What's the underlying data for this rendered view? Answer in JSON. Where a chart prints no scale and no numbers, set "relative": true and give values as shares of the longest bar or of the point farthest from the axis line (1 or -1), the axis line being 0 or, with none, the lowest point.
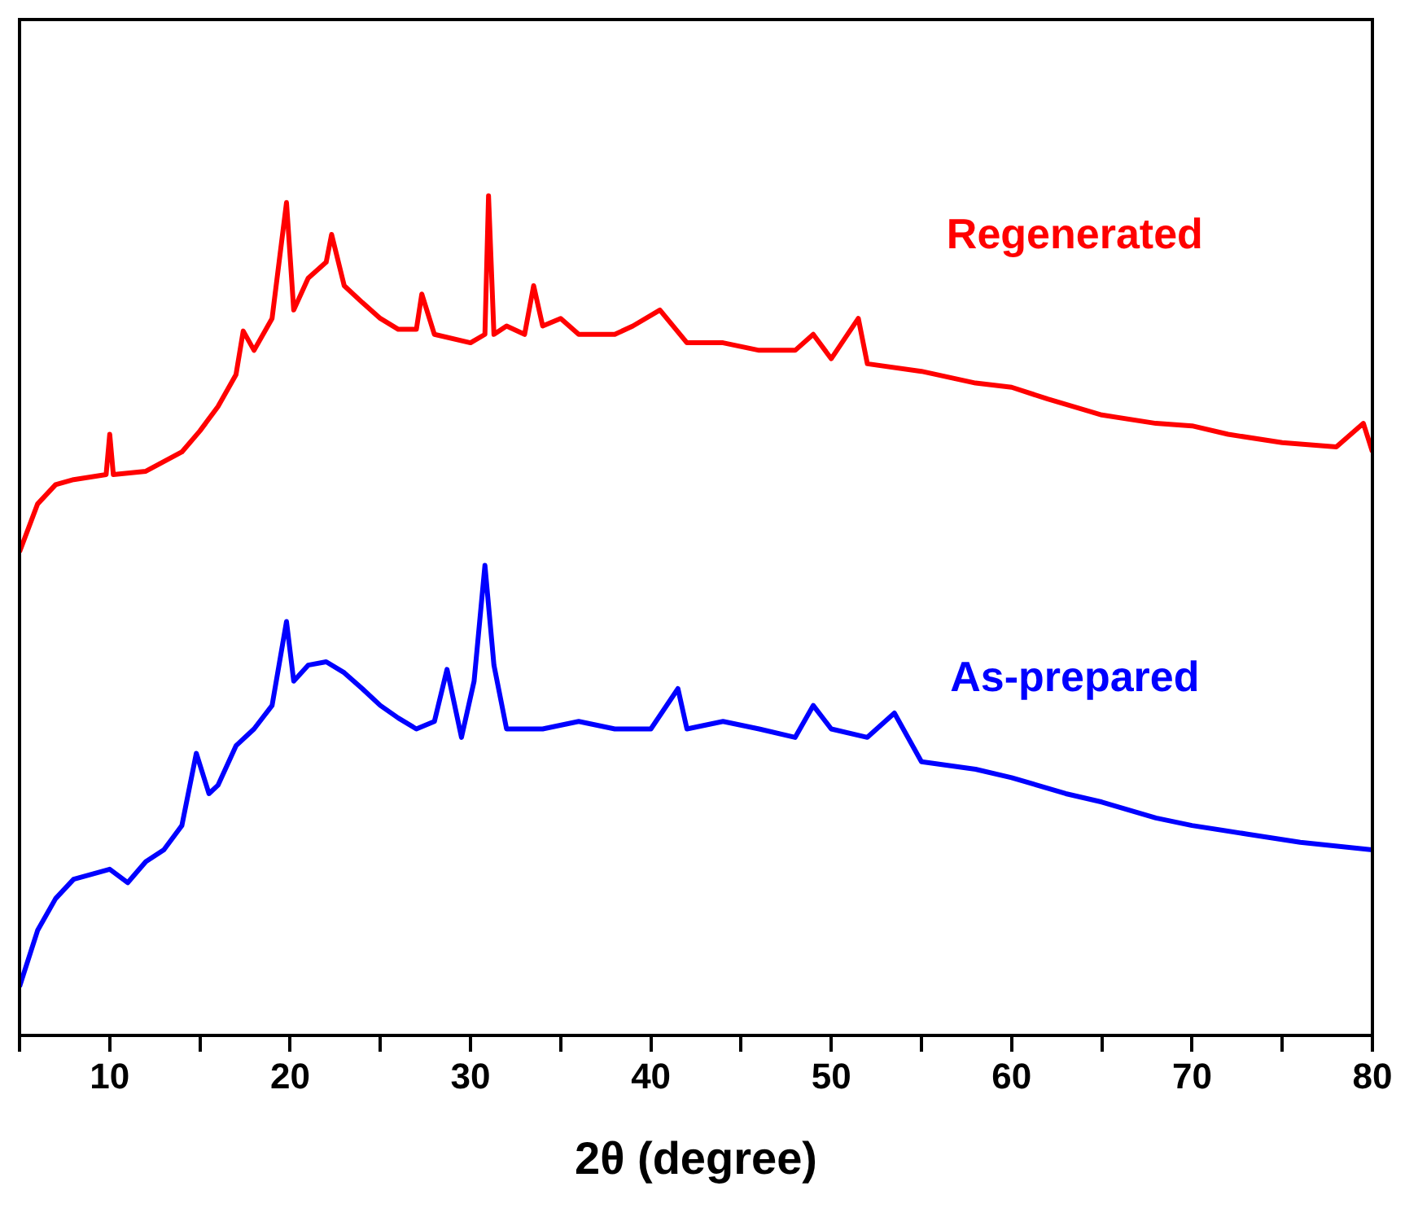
{
  "chart_data": {
    "type": "line",
    "xlabel": "2θ (degree)",
    "relative": true,
    "xlim": [
      5,
      80
    ],
    "xticks": [
      {
        "value": 5,
        "label": null
      },
      10,
      {
        "value": 15,
        "label": null
      },
      20,
      {
        "value": 25,
        "label": null
      },
      30,
      {
        "value": 35,
        "label": null
      },
      40,
      {
        "value": 45,
        "label": null
      },
      50,
      {
        "value": 55,
        "label": null
      },
      60,
      {
        "value": 65,
        "label": null
      },
      70,
      {
        "value": 75,
        "label": null
      },
      80
    ],
    "grid": false,
    "legend": false,
    "marker": "none",
    "line_style": "solid",
    "series": [
      {
        "name": "Regenerated",
        "color": "#ff0000",
        "x": [
          5,
          6,
          7,
          8,
          9.8,
          10,
          10.2,
          12,
          14,
          15,
          16,
          17,
          17.4,
          18,
          19,
          19.8,
          20.2,
          21,
          22,
          22.3,
          23,
          24,
          25,
          26,
          27,
          27.3,
          28,
          30,
          30.8,
          31,
          31.3,
          32,
          33,
          33.5,
          34,
          35,
          36,
          38,
          39,
          40.5,
          42,
          44,
          46,
          48,
          49,
          50,
          51.5,
          52,
          55,
          58,
          60,
          62,
          65,
          68,
          70,
          72,
          75,
          78,
          79.5,
          80
        ],
        "values": [
          0.576,
          0.633,
          0.656,
          0.662,
          0.668,
          0.716,
          0.668,
          0.672,
          0.695,
          0.72,
          0.749,
          0.787,
          0.839,
          0.816,
          0.854,
          0.992,
          0.864,
          0.902,
          0.921,
          0.954,
          0.893,
          0.873,
          0.854,
          0.841,
          0.841,
          0.883,
          0.835,
          0.825,
          0.835,
          1.0,
          0.835,
          0.845,
          0.835,
          0.893,
          0.845,
          0.854,
          0.835,
          0.835,
          0.845,
          0.864,
          0.825,
          0.825,
          0.816,
          0.816,
          0.835,
          0.806,
          0.854,
          0.8,
          0.791,
          0.777,
          0.772,
          0.758,
          0.739,
          0.729,
          0.726,
          0.716,
          0.706,
          0.701,
          0.729,
          0.695
        ]
      },
      {
        "name": "As-prepared",
        "color": "#0000ff",
        "x": [
          5,
          6,
          7,
          8,
          10,
          11,
          12,
          13,
          14,
          14.8,
          15.5,
          16,
          17,
          18,
          19,
          19.8,
          20.2,
          21,
          22,
          23,
          24,
          25,
          26,
          27,
          28,
          28.7,
          29.5,
          30.2,
          30.8,
          31.3,
          32,
          34,
          36,
          38,
          40,
          41.5,
          42,
          44,
          46,
          48,
          49,
          50,
          52,
          53.5,
          55,
          58,
          60,
          63,
          65,
          68,
          70,
          73,
          76,
          80
        ],
        "values": [
          0.058,
          0.125,
          0.163,
          0.186,
          0.198,
          0.182,
          0.207,
          0.221,
          0.25,
          0.336,
          0.288,
          0.298,
          0.345,
          0.365,
          0.393,
          0.493,
          0.422,
          0.441,
          0.445,
          0.432,
          0.413,
          0.393,
          0.378,
          0.365,
          0.374,
          0.436,
          0.355,
          0.422,
          0.56,
          0.441,
          0.365,
          0.365,
          0.374,
          0.365,
          0.365,
          0.413,
          0.365,
          0.374,
          0.365,
          0.355,
          0.393,
          0.365,
          0.355,
          0.384,
          0.326,
          0.317,
          0.307,
          0.288,
          0.278,
          0.259,
          0.25,
          0.24,
          0.23,
          0.221
        ]
      }
    ]
  }
}
